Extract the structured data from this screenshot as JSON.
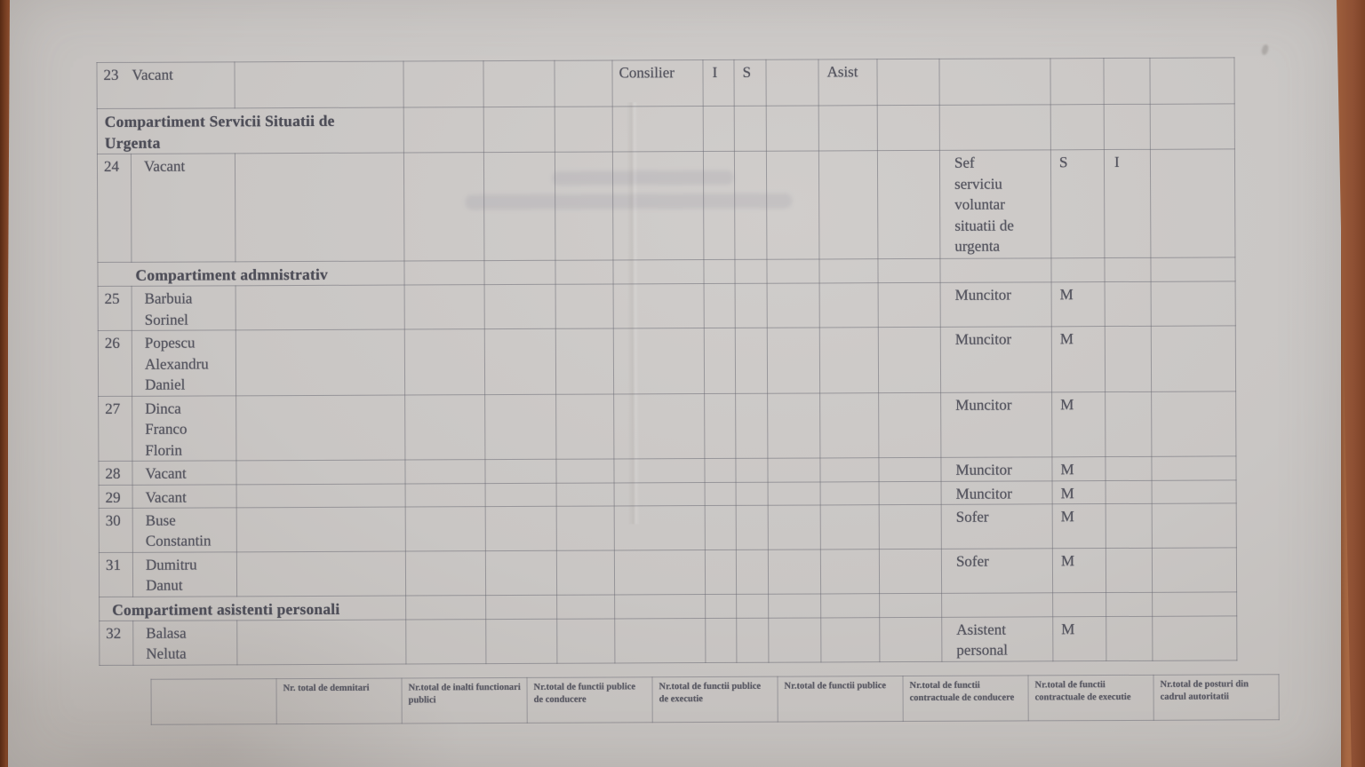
{
  "staff_table": {
    "rows": [
      {
        "type": "entry",
        "merged_nr_name": true,
        "nr": "23",
        "name": "Vacant",
        "cells": [
          {
            "col": 6,
            "text": "Consilier"
          },
          {
            "col": 7,
            "text": "I"
          },
          {
            "col": 8,
            "text": "S"
          },
          {
            "col": 10,
            "text": "Asist"
          }
        ]
      },
      {
        "type": "section",
        "label": "Compartiment Servicii Situatii de Urgenta"
      },
      {
        "type": "entry",
        "nr": "24",
        "name": "Vacant",
        "cells": [
          {
            "col": 12,
            "text": "Sef serviciu voluntar situatii de urgenta"
          },
          {
            "col": 13,
            "text": "S"
          },
          {
            "col": 14,
            "text": "I"
          }
        ]
      },
      {
        "type": "section",
        "label": "Compartiment admnistrativ"
      },
      {
        "type": "entry",
        "nr": "25",
        "name": "Barbuia Sorinel",
        "cells": [
          {
            "col": 12,
            "text": "Muncitor"
          },
          {
            "col": 13,
            "text": "M"
          }
        ]
      },
      {
        "type": "entry",
        "nr": "26",
        "name": "Popescu Alexandru Daniel",
        "cells": [
          {
            "col": 12,
            "text": "Muncitor"
          },
          {
            "col": 13,
            "text": "M"
          }
        ]
      },
      {
        "type": "entry",
        "nr": "27",
        "name": "Dinca Franco Florin",
        "cells": [
          {
            "col": 12,
            "text": "Muncitor"
          },
          {
            "col": 13,
            "text": "M"
          }
        ]
      },
      {
        "type": "entry",
        "nr": "28",
        "name": "Vacant",
        "cells": [
          {
            "col": 12,
            "text": "Muncitor"
          },
          {
            "col": 13,
            "text": "M"
          }
        ]
      },
      {
        "type": "entry",
        "nr": "29",
        "name": "Vacant",
        "cells": [
          {
            "col": 12,
            "text": "Muncitor"
          },
          {
            "col": 13,
            "text": "M"
          }
        ]
      },
      {
        "type": "entry",
        "nr": "30",
        "name": "Buse Constantin",
        "cells": [
          {
            "col": 12,
            "text": "Sofer"
          },
          {
            "col": 13,
            "text": "M"
          }
        ]
      },
      {
        "type": "entry",
        "nr": "31",
        "name": "Dumitru Danut",
        "cells": [
          {
            "col": 12,
            "text": "Sofer"
          },
          {
            "col": 13,
            "text": "M"
          }
        ]
      },
      {
        "type": "section",
        "label": "Compartiment asistenti personali"
      },
      {
        "type": "entry",
        "nr": "32",
        "name": "Balasa Neluta",
        "cells": [
          {
            "col": 12,
            "text": "Asistent personal"
          },
          {
            "col": 13,
            "text": "M"
          }
        ]
      }
    ]
  },
  "summary_table": {
    "headers": [
      "",
      "Nr. total de demnitari",
      "Nr.total de inalti functionari publici",
      "Nr.total de functii publice de conducere",
      "Nr.total de functii publice de executie",
      "Nr.total de functii publice",
      "Nr.total de functii contractuale de conducere",
      "Nr.total de functii contractuale de executie",
      "Nr.total de posturi din cadrul autoritatii"
    ]
  },
  "colors": {
    "desk_wood": "#96572f",
    "paper": "#c9c6c4",
    "ink": "#55555f",
    "grid_line": "#676771"
  }
}
